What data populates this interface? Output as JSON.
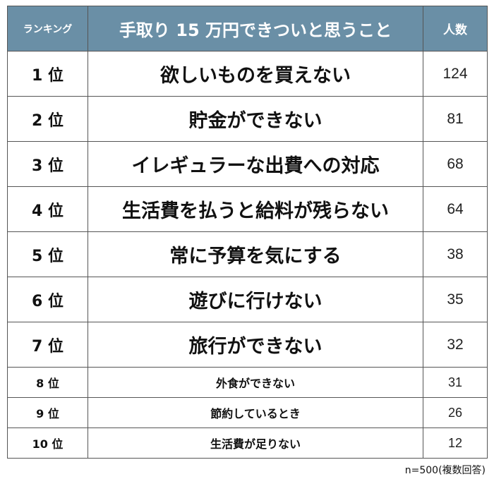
{
  "header": {
    "rank": "ランキング",
    "title": "手取り 15 万円できついと思うこと",
    "count": "人数"
  },
  "chart_data": {
    "type": "table",
    "columns": [
      "ランキング",
      "手取り 15 万円できついと思うこと",
      "人数"
    ],
    "rows": [
      {
        "rank": "1 位",
        "item": "欲しいものを買えない",
        "count": 124
      },
      {
        "rank": "2 位",
        "item": "貯金ができない",
        "count": 81
      },
      {
        "rank": "3 位",
        "item": "イレギュラーな出費への対応",
        "count": 68
      },
      {
        "rank": "4 位",
        "item": "生活費を払うと給料が残らない",
        "count": 64
      },
      {
        "rank": "5 位",
        "item": "常に予算を気にする",
        "count": 38
      },
      {
        "rank": "6 位",
        "item": "遊びに行けない",
        "count": 35
      },
      {
        "rank": "7 位",
        "item": "旅行ができない",
        "count": 32
      },
      {
        "rank": "8 位",
        "item": "外食ができない",
        "count": 31
      },
      {
        "rank": "9 位",
        "item": "節約しているとき",
        "count": 26
      },
      {
        "rank": "10 位",
        "item": "生活費が足りない",
        "count": 12
      }
    ]
  },
  "footnote": "n=500(複数回答)",
  "colors": {
    "header_bg": "#6a8fa6",
    "header_text": "#ffffff",
    "border": "#555555"
  }
}
